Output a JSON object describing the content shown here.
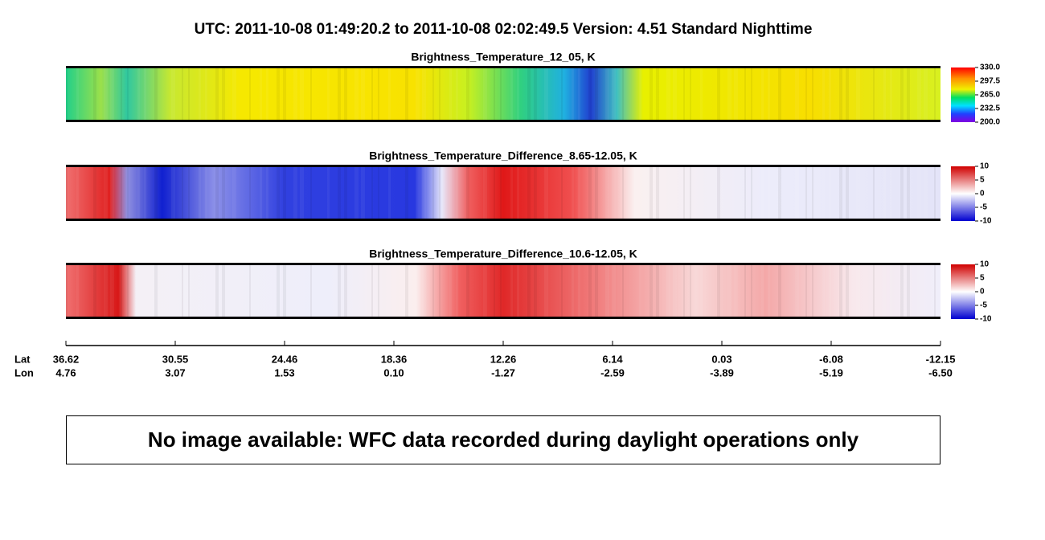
{
  "header": {
    "title": "UTC:  2011-10-08   01:49:20.2  to  2011-10-08   02:02:49.5    Version: 4.51  Standard Nighttime"
  },
  "panels": [
    {
      "title": "Brightness_Temperature_12_05, K",
      "colorbar_ticks": [
        "330.0",
        "297.5",
        "265.0",
        "232.5",
        "200.0"
      ]
    },
    {
      "title": "Brightness_Temperature_Difference_8.65-12.05, K",
      "colorbar_ticks": [
        "10",
        "5",
        "0",
        "-5",
        "-10"
      ]
    },
    {
      "title": "Brightness_Temperature_Difference_10.6-12.05, K",
      "colorbar_ticks": [
        "10",
        "5",
        "0",
        "-5",
        "-10"
      ]
    }
  ],
  "axis": {
    "lat_label": "Lat",
    "lon_label": "Lon",
    "lat": [
      "36.62",
      "30.55",
      "24.46",
      "18.36",
      "12.26",
      "6.14",
      "0.03",
      "-6.08",
      "-12.15"
    ],
    "lon": [
      "4.76",
      "3.07",
      "1.53",
      "0.10",
      "-1.27",
      "-2.59",
      "-3.89",
      "-5.19",
      "-6.50"
    ]
  },
  "notice": "No image available: WFC data recorded during daylight operations only"
}
